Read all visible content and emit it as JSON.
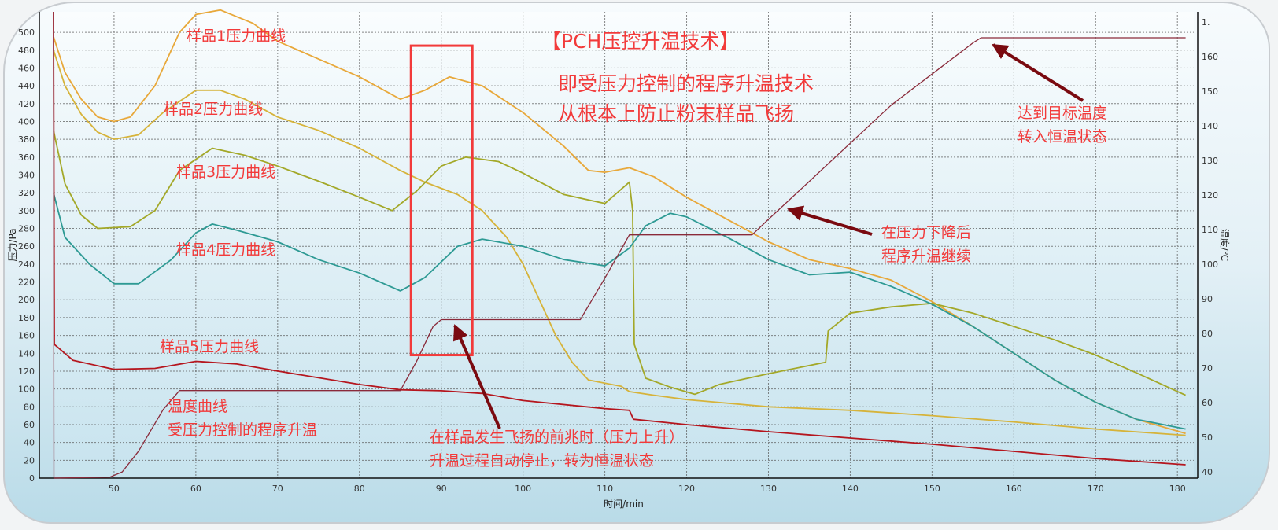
{
  "chart_data": {
    "type": "line",
    "title": "【PCH压控升温技术】",
    "xlabel": "时间/min",
    "ylabel": "压力/Pa",
    "y2label": "温度/℃",
    "xlim": [
      42.6,
      182
    ],
    "ylim": [
      0,
      523
    ],
    "y2lim": [
      38.2,
      173
    ],
    "grid": true,
    "x_ticks": [
      50,
      60,
      70,
      80,
      90,
      100,
      110,
      120,
      130,
      140,
      150,
      160,
      170,
      180
    ],
    "y_ticks": [
      0,
      20,
      40,
      60,
      80,
      100,
      120,
      140,
      160,
      180,
      200,
      220,
      240,
      260,
      280,
      300,
      320,
      340,
      360,
      380,
      400,
      420,
      440,
      460,
      480,
      500
    ],
    "y2_ticks": [
      40,
      50,
      60,
      70,
      80,
      90,
      100,
      110,
      120,
      130,
      140,
      150,
      160
    ],
    "y2_top_label": "1.",
    "series": [
      {
        "name": "样品1压力曲线",
        "axis": "left",
        "color": "#e8a83a",
        "points": [
          [
            42.6,
            495
          ],
          [
            44,
            455
          ],
          [
            46,
            425
          ],
          [
            48,
            405
          ],
          [
            50,
            400
          ],
          [
            52,
            405
          ],
          [
            55,
            440
          ],
          [
            58,
            500
          ],
          [
            60,
            520
          ],
          [
            63,
            525
          ],
          [
            67,
            510
          ],
          [
            70,
            490
          ],
          [
            75,
            470
          ],
          [
            80,
            450
          ],
          [
            85,
            425
          ],
          [
            88,
            435
          ],
          [
            91,
            450
          ],
          [
            95,
            440
          ],
          [
            100,
            410
          ],
          [
            105,
            372
          ],
          [
            108,
            345
          ],
          [
            110,
            343
          ],
          [
            113,
            348
          ],
          [
            116,
            338
          ],
          [
            120,
            315
          ],
          [
            125,
            290
          ],
          [
            130,
            265
          ],
          [
            135,
            245
          ],
          [
            140,
            235
          ],
          [
            145,
            222
          ],
          [
            150,
            198
          ],
          [
            155,
            170
          ],
          [
            160,
            140
          ],
          [
            165,
            110
          ],
          [
            170,
            85
          ],
          [
            175,
            66
          ],
          [
            181,
            50
          ]
        ]
      },
      {
        "name": "样品2压力曲线",
        "axis": "left",
        "color": "#d6b33a",
        "points": [
          [
            42.6,
            480
          ],
          [
            44,
            440
          ],
          [
            46,
            408
          ],
          [
            48,
            388
          ],
          [
            50,
            380
          ],
          [
            53,
            385
          ],
          [
            56,
            410
          ],
          [
            60,
            435
          ],
          [
            63,
            435
          ],
          [
            66,
            425
          ],
          [
            70,
            405
          ],
          [
            75,
            390
          ],
          [
            80,
            370
          ],
          [
            85,
            345
          ],
          [
            88,
            332
          ],
          [
            92,
            318
          ],
          [
            95,
            300
          ],
          [
            98,
            270
          ],
          [
            100,
            240
          ],
          [
            102,
            200
          ],
          [
            104,
            160
          ],
          [
            106,
            130
          ],
          [
            108,
            110
          ],
          [
            112,
            103
          ],
          [
            113,
            97
          ],
          [
            116,
            93
          ],
          [
            120,
            88
          ],
          [
            130,
            80
          ],
          [
            140,
            76
          ],
          [
            150,
            70
          ],
          [
            160,
            63
          ],
          [
            170,
            55
          ],
          [
            181,
            48
          ]
        ]
      },
      {
        "name": "样品3压力曲线",
        "axis": "left",
        "color": "#a3a828",
        "points": [
          [
            42.6,
            390
          ],
          [
            44,
            330
          ],
          [
            46,
            295
          ],
          [
            48,
            280
          ],
          [
            52,
            282
          ],
          [
            55,
            300
          ],
          [
            58,
            345
          ],
          [
            62,
            370
          ],
          [
            66,
            362
          ],
          [
            70,
            350
          ],
          [
            75,
            333
          ],
          [
            80,
            315
          ],
          [
            84,
            300
          ],
          [
            87,
            322
          ],
          [
            90,
            350
          ],
          [
            93,
            360
          ],
          [
            97,
            355
          ],
          [
            100,
            342
          ],
          [
            105,
            318
          ],
          [
            110,
            308
          ],
          [
            113,
            332
          ],
          [
            113.4,
            300
          ],
          [
            113.6,
            150
          ],
          [
            115,
            112
          ],
          [
            118,
            102
          ],
          [
            121,
            94
          ],
          [
            124,
            105
          ],
          [
            130,
            117
          ],
          [
            137,
            130
          ],
          [
            137.3,
            165
          ],
          [
            140,
            185
          ],
          [
            145,
            192
          ],
          [
            150,
            196
          ],
          [
            155,
            185
          ],
          [
            160,
            170
          ],
          [
            165,
            155
          ],
          [
            170,
            138
          ],
          [
            175,
            118
          ],
          [
            181,
            93
          ]
        ]
      },
      {
        "name": "样品4压力曲线",
        "axis": "left",
        "color": "#2e9a94",
        "points": [
          [
            42.6,
            320
          ],
          [
            44,
            270
          ],
          [
            47,
            240
          ],
          [
            50,
            218
          ],
          [
            53,
            218
          ],
          [
            57,
            245
          ],
          [
            60,
            275
          ],
          [
            62,
            285
          ],
          [
            65,
            278
          ],
          [
            70,
            265
          ],
          [
            75,
            245
          ],
          [
            80,
            230
          ],
          [
            85,
            210
          ],
          [
            88,
            225
          ],
          [
            92,
            260
          ],
          [
            95,
            268
          ],
          [
            100,
            260
          ],
          [
            105,
            245
          ],
          [
            110,
            238
          ],
          [
            113,
            258
          ],
          [
            115,
            283
          ],
          [
            118,
            297
          ],
          [
            120,
            293
          ],
          [
            125,
            270
          ],
          [
            130,
            245
          ],
          [
            135,
            228
          ],
          [
            140,
            231
          ],
          [
            145,
            215
          ],
          [
            150,
            195
          ],
          [
            155,
            170
          ],
          [
            160,
            140
          ],
          [
            165,
            110
          ],
          [
            170,
            85
          ],
          [
            175,
            66
          ],
          [
            181,
            55
          ]
        ]
      },
      {
        "name": "样品5压力曲线",
        "axis": "left",
        "color": "#b5161e",
        "points": [
          [
            42.6,
            523
          ],
          [
            42.7,
            150
          ],
          [
            45,
            132
          ],
          [
            50,
            122
          ],
          [
            55,
            123
          ],
          [
            60,
            131
          ],
          [
            65,
            128
          ],
          [
            70,
            120
          ],
          [
            80,
            105
          ],
          [
            85,
            99
          ],
          [
            90,
            98
          ],
          [
            95,
            95
          ],
          [
            100,
            87
          ],
          [
            110,
            78
          ],
          [
            113,
            76
          ],
          [
            113.5,
            66
          ],
          [
            120,
            60
          ],
          [
            130,
            52
          ],
          [
            140,
            45
          ],
          [
            150,
            38
          ],
          [
            160,
            30
          ],
          [
            170,
            22
          ],
          [
            181,
            15
          ]
        ]
      },
      {
        "name": "温度曲线",
        "axis": "right",
        "color": "#8a2a3a",
        "points": [
          [
            42.6,
            173
          ],
          [
            42.65,
            38.2
          ],
          [
            49.5,
            38.5
          ],
          [
            51,
            40
          ],
          [
            53,
            46
          ],
          [
            56,
            58
          ],
          [
            58,
            63.5
          ],
          [
            85,
            63.5
          ],
          [
            87,
            72
          ],
          [
            89,
            82
          ],
          [
            90,
            84
          ],
          [
            107,
            84
          ],
          [
            110,
            96
          ],
          [
            113,
            108.5
          ],
          [
            128,
            108.5
          ],
          [
            130,
            113
          ],
          [
            135,
            124
          ],
          [
            140,
            135
          ],
          [
            145,
            146
          ],
          [
            150,
            155
          ],
          [
            155,
            164
          ],
          [
            156,
            165.5
          ],
          [
            181,
            165.5
          ]
        ]
      }
    ],
    "annotations": {
      "title": "【PCH压控升温技术】",
      "subtitle_line1": "即受压力控制的程序升温技术",
      "subtitle_line2": "从根本上防止粉末样品飞扬",
      "label_s1": "样品1压力曲线",
      "label_s2": "样品2压力曲线",
      "label_s3": "样品3压力曲线",
      "label_s4": "样品4压力曲线",
      "label_s5": "样品5压力曲线",
      "temp_line1": "温度曲线",
      "temp_line2": "受压力控制的程序升温",
      "stop_line1": "在样品发生飞扬的前兆时（压力上升）",
      "stop_line2": "升温过程自动停止，转为恒温状态",
      "resume_line1": "在压力下降后",
      "resume_line2": "程序升温继续",
      "target_line1": "达到目标温度",
      "target_line2": "转入恒温状态"
    },
    "highlight_box": {
      "x_range": [
        86.3,
        93.8
      ],
      "y_range": [
        138,
        485
      ]
    },
    "colors": {
      "annotation": "#f23a3a",
      "arrow": "#7a0a10",
      "box": "#f23a3a"
    }
  }
}
